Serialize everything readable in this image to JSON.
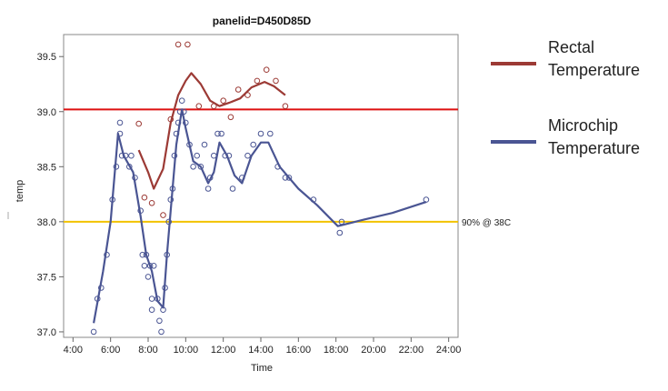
{
  "chart_data": {
    "type": "scatter",
    "title": "panelid=D450D85D",
    "xlabel": "Time",
    "ylabel": "temp",
    "xlim": [
      3.5,
      24.5
    ],
    "ylim": [
      36.95,
      39.7
    ],
    "xticks": [
      4,
      6,
      8,
      10,
      12,
      14,
      16,
      18,
      20,
      22,
      24
    ],
    "xtick_labels": [
      "4:00",
      "6:00",
      "8:00",
      "10:00",
      "12:00",
      "14:00",
      "16:00",
      "18:00",
      "20:00",
      "22:00",
      "24:00"
    ],
    "yticks": [
      37.0,
      37.5,
      38.0,
      38.5,
      39.0,
      39.5
    ],
    "ytick_labels": [
      "37.0",
      "37.5",
      "38.0",
      "38.5",
      "39.0",
      "39.5"
    ],
    "grid": false,
    "legend_position": "right",
    "reference_lines": [
      {
        "y": 39.02,
        "color": "#dd1111",
        "label": ""
      },
      {
        "y": 38.0,
        "color": "#f2c300",
        "label": "90% @ 38C"
      }
    ],
    "series": [
      {
        "name": "Rectal Temperature",
        "color": "#9c3a35",
        "points": [
          [
            7.5,
            38.89
          ],
          [
            7.8,
            38.22
          ],
          [
            8.2,
            38.17
          ],
          [
            8.8,
            38.06
          ],
          [
            9.2,
            38.93
          ],
          [
            9.6,
            39.61
          ],
          [
            10.1,
            39.61
          ],
          [
            10.7,
            39.05
          ],
          [
            11.5,
            39.05
          ],
          [
            12.0,
            39.1
          ],
          [
            12.4,
            38.95
          ],
          [
            12.8,
            39.2
          ],
          [
            13.3,
            39.15
          ],
          [
            13.8,
            39.28
          ],
          [
            14.3,
            39.38
          ],
          [
            14.8,
            39.28
          ],
          [
            15.3,
            39.05
          ]
        ],
        "curve": [
          [
            7.5,
            38.65
          ],
          [
            8.0,
            38.45
          ],
          [
            8.3,
            38.3
          ],
          [
            8.8,
            38.48
          ],
          [
            9.2,
            38.9
          ],
          [
            9.6,
            39.15
          ],
          [
            10.0,
            39.28
          ],
          [
            10.3,
            39.35
          ],
          [
            10.8,
            39.25
          ],
          [
            11.3,
            39.1
          ],
          [
            11.8,
            39.05
          ],
          [
            12.3,
            39.08
          ],
          [
            12.9,
            39.12
          ],
          [
            13.5,
            39.22
          ],
          [
            14.2,
            39.27
          ],
          [
            14.7,
            39.23
          ],
          [
            15.3,
            39.15
          ]
        ]
      },
      {
        "name": "Microchip Temperature",
        "color": "#4a5593",
        "points": [
          [
            5.1,
            37.0
          ],
          [
            5.3,
            37.3
          ],
          [
            5.5,
            37.4
          ],
          [
            5.8,
            37.7
          ],
          [
            6.1,
            38.2
          ],
          [
            6.3,
            38.5
          ],
          [
            6.5,
            38.9
          ],
          [
            6.5,
            38.8
          ],
          [
            6.6,
            38.6
          ],
          [
            6.8,
            38.6
          ],
          [
            7.0,
            38.5
          ],
          [
            7.1,
            38.6
          ],
          [
            7.3,
            38.4
          ],
          [
            7.6,
            38.1
          ],
          [
            7.7,
            37.7
          ],
          [
            7.8,
            37.6
          ],
          [
            7.9,
            37.7
          ],
          [
            8.0,
            37.5
          ],
          [
            8.1,
            37.6
          ],
          [
            8.2,
            37.2
          ],
          [
            8.2,
            37.3
          ],
          [
            8.3,
            37.6
          ],
          [
            8.5,
            37.3
          ],
          [
            8.6,
            37.1
          ],
          [
            8.7,
            37.0
          ],
          [
            8.8,
            37.2
          ],
          [
            8.9,
            37.4
          ],
          [
            9.0,
            37.7
          ],
          [
            9.1,
            38.0
          ],
          [
            9.2,
            38.2
          ],
          [
            9.3,
            38.3
          ],
          [
            9.4,
            38.6
          ],
          [
            9.5,
            38.8
          ],
          [
            9.6,
            38.9
          ],
          [
            9.7,
            39.0
          ],
          [
            9.8,
            39.1
          ],
          [
            9.9,
            39.0
          ],
          [
            10.0,
            38.9
          ],
          [
            10.2,
            38.7
          ],
          [
            10.4,
            38.5
          ],
          [
            10.6,
            38.6
          ],
          [
            10.8,
            38.5
          ],
          [
            11.0,
            38.7
          ],
          [
            11.2,
            38.3
          ],
          [
            11.3,
            38.4
          ],
          [
            11.5,
            38.6
          ],
          [
            11.7,
            38.8
          ],
          [
            11.9,
            38.8
          ],
          [
            12.1,
            38.6
          ],
          [
            12.3,
            38.6
          ],
          [
            12.5,
            38.3
          ],
          [
            13.0,
            38.4
          ],
          [
            13.3,
            38.6
          ],
          [
            13.6,
            38.7
          ],
          [
            14.0,
            38.8
          ],
          [
            14.5,
            38.8
          ],
          [
            14.9,
            38.5
          ],
          [
            15.3,
            38.4
          ],
          [
            15.5,
            38.4
          ],
          [
            16.8,
            38.2
          ],
          [
            18.2,
            37.9
          ],
          [
            18.3,
            38.0
          ],
          [
            22.8,
            38.2
          ]
        ],
        "curve": [
          [
            5.1,
            37.08
          ],
          [
            5.6,
            37.55
          ],
          [
            6.0,
            38.0
          ],
          [
            6.4,
            38.8
          ],
          [
            6.7,
            38.6
          ],
          [
            7.2,
            38.45
          ],
          [
            7.6,
            38.05
          ],
          [
            7.9,
            37.7
          ],
          [
            8.2,
            37.55
          ],
          [
            8.5,
            37.28
          ],
          [
            8.8,
            37.22
          ],
          [
            9.0,
            37.7
          ],
          [
            9.2,
            38.1
          ],
          [
            9.5,
            38.7
          ],
          [
            9.8,
            39.02
          ],
          [
            10.0,
            38.85
          ],
          [
            10.4,
            38.55
          ],
          [
            10.8,
            38.5
          ],
          [
            11.2,
            38.35
          ],
          [
            11.5,
            38.45
          ],
          [
            11.8,
            38.72
          ],
          [
            12.2,
            38.6
          ],
          [
            12.6,
            38.42
          ],
          [
            13.0,
            38.35
          ],
          [
            13.5,
            38.6
          ],
          [
            14.0,
            38.72
          ],
          [
            14.4,
            38.72
          ],
          [
            15.0,
            38.5
          ],
          [
            16.0,
            38.3
          ],
          [
            17.0,
            38.15
          ],
          [
            18.1,
            37.96
          ],
          [
            19.5,
            38.02
          ],
          [
            21.0,
            38.08
          ],
          [
            22.8,
            38.18
          ]
        ]
      }
    ]
  }
}
